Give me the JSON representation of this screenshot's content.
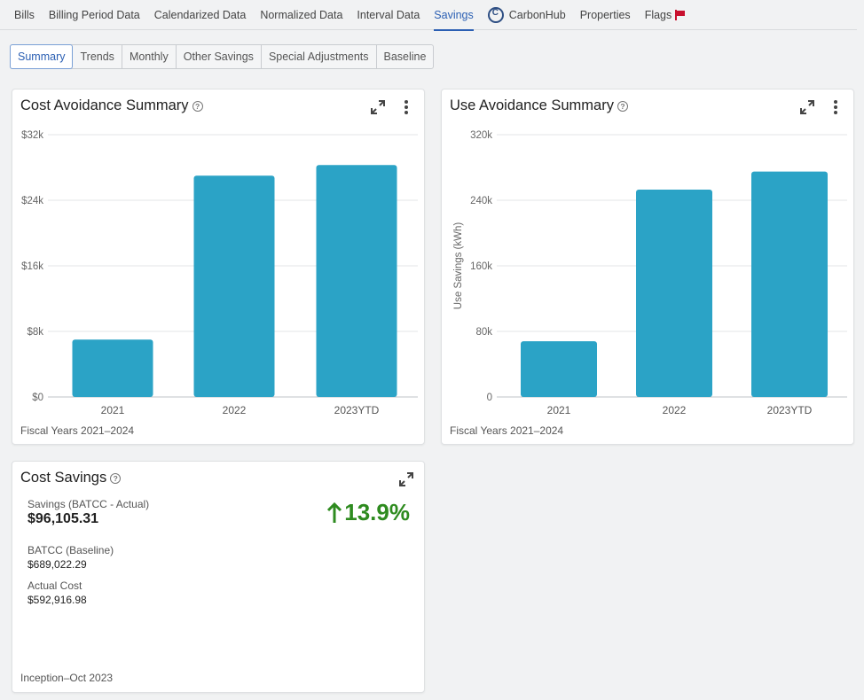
{
  "nav": {
    "items": [
      {
        "label": "Bills"
      },
      {
        "label": "Billing Period Data"
      },
      {
        "label": "Calendarized Data"
      },
      {
        "label": "Normalized Data"
      },
      {
        "label": "Interval Data"
      },
      {
        "label": "Savings",
        "active": true
      },
      {
        "label": "CarbonHub",
        "icon": "carbonhub-logo-icon"
      },
      {
        "label": "Properties"
      },
      {
        "label": "Flags",
        "icon": "flag-icon"
      }
    ]
  },
  "subtabs": [
    {
      "label": "Summary",
      "active": true
    },
    {
      "label": "Trends"
    },
    {
      "label": "Monthly"
    },
    {
      "label": "Other Savings"
    },
    {
      "label": "Special Adjustments"
    },
    {
      "label": "Baseline"
    }
  ],
  "cost_card": {
    "title": "Cost Avoidance Summary",
    "footer": "Fiscal Years 2021–2024"
  },
  "use_card": {
    "title": "Use Avoidance Summary",
    "footer": "Fiscal Years 2021–2024"
  },
  "chart_data": [
    {
      "type": "bar",
      "title": "Cost Avoidance Summary",
      "categories": [
        "2021",
        "2022",
        "2023YTD"
      ],
      "values": [
        7000,
        27000,
        28300
      ],
      "ylim": [
        0,
        32000
      ],
      "yticks": [
        0,
        8000,
        16000,
        24000,
        32000
      ],
      "ytick_labels": [
        "$0",
        "$8k",
        "$16k",
        "$24k",
        "$32k"
      ],
      "ylabel": "",
      "color": "#2ba3c6",
      "grid": true
    },
    {
      "type": "bar",
      "title": "Use Avoidance Summary",
      "categories": [
        "2021",
        "2022",
        "2023YTD"
      ],
      "values": [
        68000,
        253000,
        275000
      ],
      "ylim": [
        0,
        320000
      ],
      "yticks": [
        0,
        80000,
        160000,
        240000,
        320000
      ],
      "ytick_labels": [
        "0",
        "80k",
        "160k",
        "240k",
        "320k"
      ],
      "ylabel": "Use Savings (kWh)",
      "color": "#2ba3c6",
      "grid": true
    }
  ],
  "savings_card": {
    "title": "Cost Savings",
    "savings_label": "Savings (BATCC - Actual)",
    "savings_value": "$96,105.31",
    "percent": "13.9%",
    "percent_color": "#2e8b1f",
    "baseline_label": "BATCC (Baseline)",
    "baseline_value": "$689,022.29",
    "actual_label": "Actual Cost",
    "actual_value": "$592,916.98",
    "footer": "Inception–Oct 2023"
  }
}
